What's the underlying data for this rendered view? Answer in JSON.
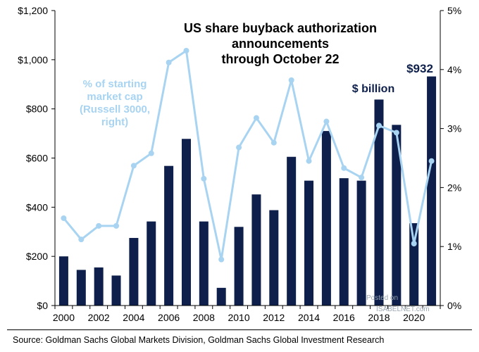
{
  "chart_data": {
    "type": "bar",
    "title": "US share buyback authorization announcements through October 22",
    "title_lines": [
      "US share buyback authorization",
      "announcements",
      "through October 22"
    ],
    "years": [
      2000,
      2001,
      2002,
      2003,
      2004,
      2005,
      2006,
      2007,
      2008,
      2009,
      2010,
      2011,
      2012,
      2013,
      2014,
      2015,
      2016,
      2017,
      2018,
      2019,
      2020,
      2021
    ],
    "x_tick_labels": [
      "2000",
      "2002",
      "2004",
      "2006",
      "2008",
      "2010",
      "2012",
      "2014",
      "2016",
      "2018",
      "2020"
    ],
    "series": [
      {
        "name": "$ billion",
        "axis": "left",
        "type": "bar",
        "color": "#0d1f4a",
        "values": [
          200,
          145,
          155,
          122,
          275,
          342,
          568,
          678,
          342,
          72,
          320,
          452,
          388,
          605,
          508,
          710,
          518,
          508,
          838,
          735,
          335,
          932
        ]
      },
      {
        "name": "% of starting market cap (Russell 3000, right)",
        "label_lines": [
          "%  of starting",
          "market cap",
          "(Russell  3000,",
          "right)"
        ],
        "axis": "right",
        "type": "line",
        "color": "#a8d4f2",
        "values": [
          1.48,
          1.12,
          1.35,
          1.35,
          2.37,
          2.58,
          4.12,
          4.32,
          2.15,
          0.78,
          2.68,
          3.18,
          2.76,
          3.82,
          2.45,
          3.12,
          2.33,
          2.17,
          3.05,
          2.93,
          1.05,
          2.45
        ]
      }
    ],
    "y_left": {
      "min": 0,
      "max": 1200,
      "ticks": [
        "$0",
        "$200",
        "$400",
        "$600",
        "$800",
        "$1,000",
        "$1,200"
      ]
    },
    "y_right": {
      "min": 0,
      "max": 5,
      "ticks": [
        "0%",
        "1%",
        "2%",
        "3%",
        "4%",
        "5%"
      ]
    },
    "callout": "$932",
    "grid": false
  },
  "source": "Source: Goldman Sachs Global Markets Division, Goldman Sachs Global Investment Research",
  "watermark": {
    "line1": "Posted on",
    "line2": "ISABELNET.com"
  }
}
